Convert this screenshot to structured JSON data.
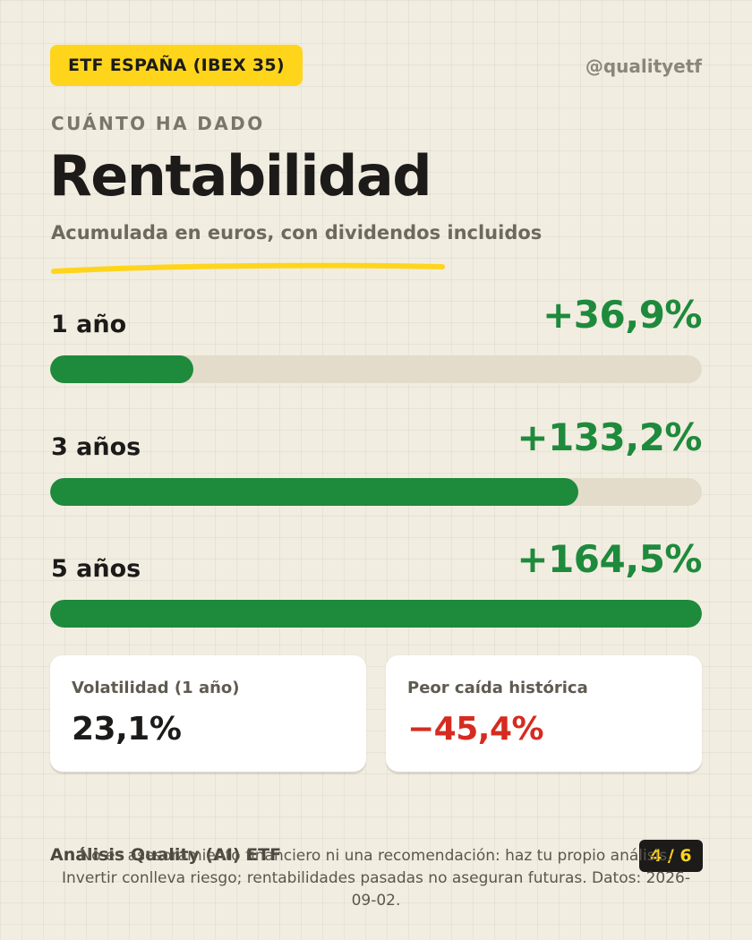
{
  "header": {
    "badge": "ETF ESPAÑA (IBEX 35)",
    "handle": "@qualityetf"
  },
  "hero": {
    "eyebrow": "CUÁNTO HA DADO",
    "title": "Rentabilidad",
    "subtitle": "Acumulada en euros, con dividendos incluidos"
  },
  "metrics": [
    {
      "label": "1 año",
      "value": "+36,9%",
      "fill": 0.22
    },
    {
      "label": "3 años",
      "value": "+133,2%",
      "fill": 0.81
    },
    {
      "label": "5 años",
      "value": "+164,5%",
      "fill": 1.0
    }
  ],
  "stats": {
    "volatility": {
      "label": "Volatilidad (1 año)",
      "value": "23,1%"
    },
    "drawdown": {
      "label": "Peor caída histórica",
      "value": "−45,4%"
    }
  },
  "footer": {
    "brand": "Análisis Quality (AI) ETF",
    "page": "4 / 6",
    "disclaimer": "No es asesoramiento financiero ni una recomendación: haz tu propio análisis. Invertir conlleva riesgo; rentabilidades pasadas no aseguran futuras. Datos: 2026-09-02."
  },
  "colors": {
    "accent_yellow": "#ffd51c",
    "positive_green": "#1e8a3c",
    "negative_red": "#d62b20",
    "background": "#f2ede1"
  }
}
